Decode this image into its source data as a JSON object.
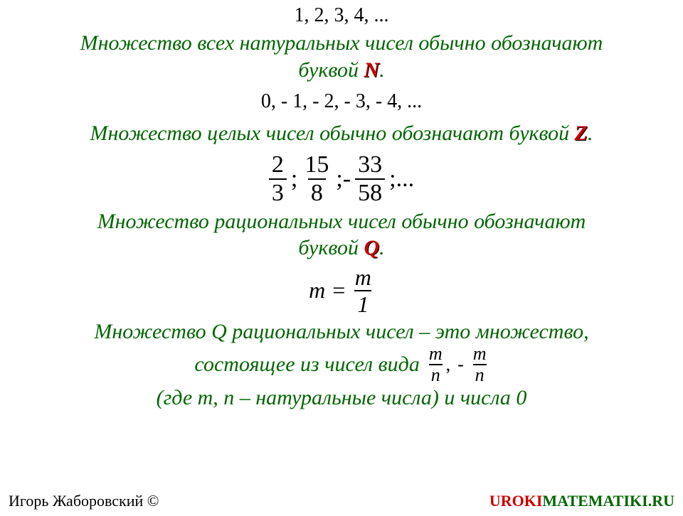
{
  "seq_natural": "1, 2, 3, 4, ...",
  "text_natural_1": "Множество всех натуральных чисел обычно обозначают",
  "text_natural_2a": "буквой ",
  "letter_N": "N",
  "text_natural_2b": ".",
  "seq_integers": "0,  - 1,  -  2,  -  3,  -  4, ...",
  "text_integers_a": "Множество целых чисел обычно обозначают  буквой ",
  "letter_Z": "Z",
  "text_integers_b": ".",
  "fractions": {
    "f1": {
      "num": "2",
      "den": "3"
    },
    "sep1": ";",
    "f2": {
      "num": "15",
      "den": "8"
    },
    "sep2": ";-",
    "f3": {
      "num": "33",
      "den": "58"
    },
    "sep3": ";..."
  },
  "text_rational_1": "Множество рациональных чисел обычно обозначают",
  "text_rational_2a": "буквой ",
  "letter_Q": "Q",
  "text_rational_2b": ".",
  "eq": {
    "lhs": "m =",
    "num": "m",
    "den": "1"
  },
  "text_q_set_1": "Множество Q рациональных чисел – это множество,",
  "text_q_set_2": "состоящее из чисел вида",
  "frac_mn": {
    "num": "m",
    "den": "n"
  },
  "comma": ",",
  "minus": "-",
  "text_q_set_3": "(где m, n – натуральные числа) и числа 0",
  "author": "Игорь Жаборовский ©",
  "site_u": "UROKI",
  "site_rest": "MATEMATIKI.RU"
}
